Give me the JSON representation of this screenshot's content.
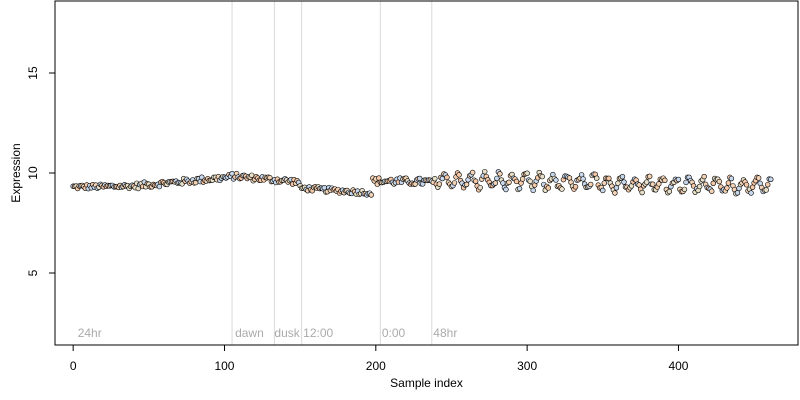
{
  "chart_data": {
    "type": "scatter",
    "title": "",
    "xlabel": "Sample index",
    "ylabel": "Expression",
    "xlim": [
      -12,
      479
    ],
    "ylim": [
      1.4,
      18.6
    ],
    "xticks": [
      0,
      100,
      200,
      300,
      400
    ],
    "xtick_labels": [
      "0",
      "100",
      "200",
      "300",
      "400"
    ],
    "yticks": [
      5,
      10,
      15
    ],
    "ytick_labels": [
      "5",
      "10",
      "15"
    ],
    "grid": false,
    "legend": "none",
    "point_count": 462,
    "point_style": "open circles with pastel fill (peach/light-blue), black outline",
    "vlines": [
      105,
      133,
      151,
      203,
      237
    ],
    "vline_color": "#d9d9d9",
    "annotations": [
      {
        "text": "24hr",
        "x": 3
      },
      {
        "text": "dawn",
        "x": 107
      },
      {
        "text": "dusk",
        "x": 133
      },
      {
        "text": "12:00",
        "x": 152
      },
      {
        "text": "0:00",
        "x": 204
      },
      {
        "text": "48hr",
        "x": 238
      }
    ],
    "annotation_y": 2.0,
    "segments": [
      {
        "x_start": 0,
        "x_end": 40,
        "y_start": 9.3,
        "y_end": 9.35,
        "noise": 0.12
      },
      {
        "x_start": 40,
        "x_end": 105,
        "y_start": 9.35,
        "y_end": 9.8,
        "noise": 0.15
      },
      {
        "x_start": 105,
        "x_end": 150,
        "y_start": 9.85,
        "y_end": 9.55,
        "noise": 0.15
      },
      {
        "x_start": 150,
        "x_end": 198,
        "y_start": 9.25,
        "y_end": 9.0,
        "noise": 0.12
      },
      {
        "x_start": 198,
        "x_end": 240,
        "y_start": 9.6,
        "y_end": 9.55,
        "noise": 0.18
      },
      {
        "x_start": 240,
        "x_end": 462,
        "y_start": 9.65,
        "y_end": 9.35,
        "noise": 0.15,
        "oscillation_amplitude": 0.35,
        "oscillation_period": 9
      }
    ],
    "colors": {
      "point_fills": [
        "#f2d3b5",
        "#c8d8ec",
        "#e8e0c8",
        "#f5c8a8"
      ],
      "point_stroke": "#000000",
      "annotation_text": "#aaaaaa"
    }
  }
}
